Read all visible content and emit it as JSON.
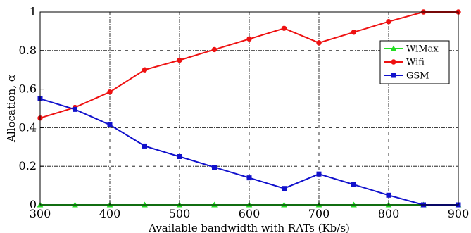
{
  "chart_data": {
    "type": "line",
    "xlabel": "Available bandwidth with RATs (Kb/s)",
    "ylabel": "Allocation, α",
    "xlim": [
      300,
      900
    ],
    "ylim": [
      0,
      1
    ],
    "x": [
      300,
      350,
      400,
      450,
      500,
      550,
      600,
      650,
      700,
      750,
      800,
      850,
      900
    ],
    "xticks": [
      "300",
      "400",
      "500",
      "600",
      "700",
      "800",
      "900"
    ],
    "yticks": [
      "0",
      "0.2",
      "0.4",
      "0.6",
      "0.8",
      "1"
    ],
    "grid": true,
    "legend_position": "right",
    "series": [
      {
        "name": "WiMax",
        "color": "#22dd22",
        "marker": "triangle",
        "values": [
          0,
          0,
          0,
          0,
          0,
          0,
          0,
          0,
          0,
          0,
          0,
          0,
          0
        ]
      },
      {
        "name": "Wifi",
        "color": "#ee1111",
        "marker": "circle",
        "values": [
          0.45,
          0.505,
          0.585,
          0.7,
          0.75,
          0.805,
          0.86,
          0.915,
          0.84,
          0.895,
          0.95,
          1.0,
          1.0
        ]
      },
      {
        "name": "GSM",
        "color": "#1111cc",
        "marker": "square",
        "values": [
          0.55,
          0.495,
          0.415,
          0.305,
          0.25,
          0.195,
          0.14,
          0.085,
          0.16,
          0.105,
          0.05,
          0,
          0
        ]
      }
    ]
  }
}
